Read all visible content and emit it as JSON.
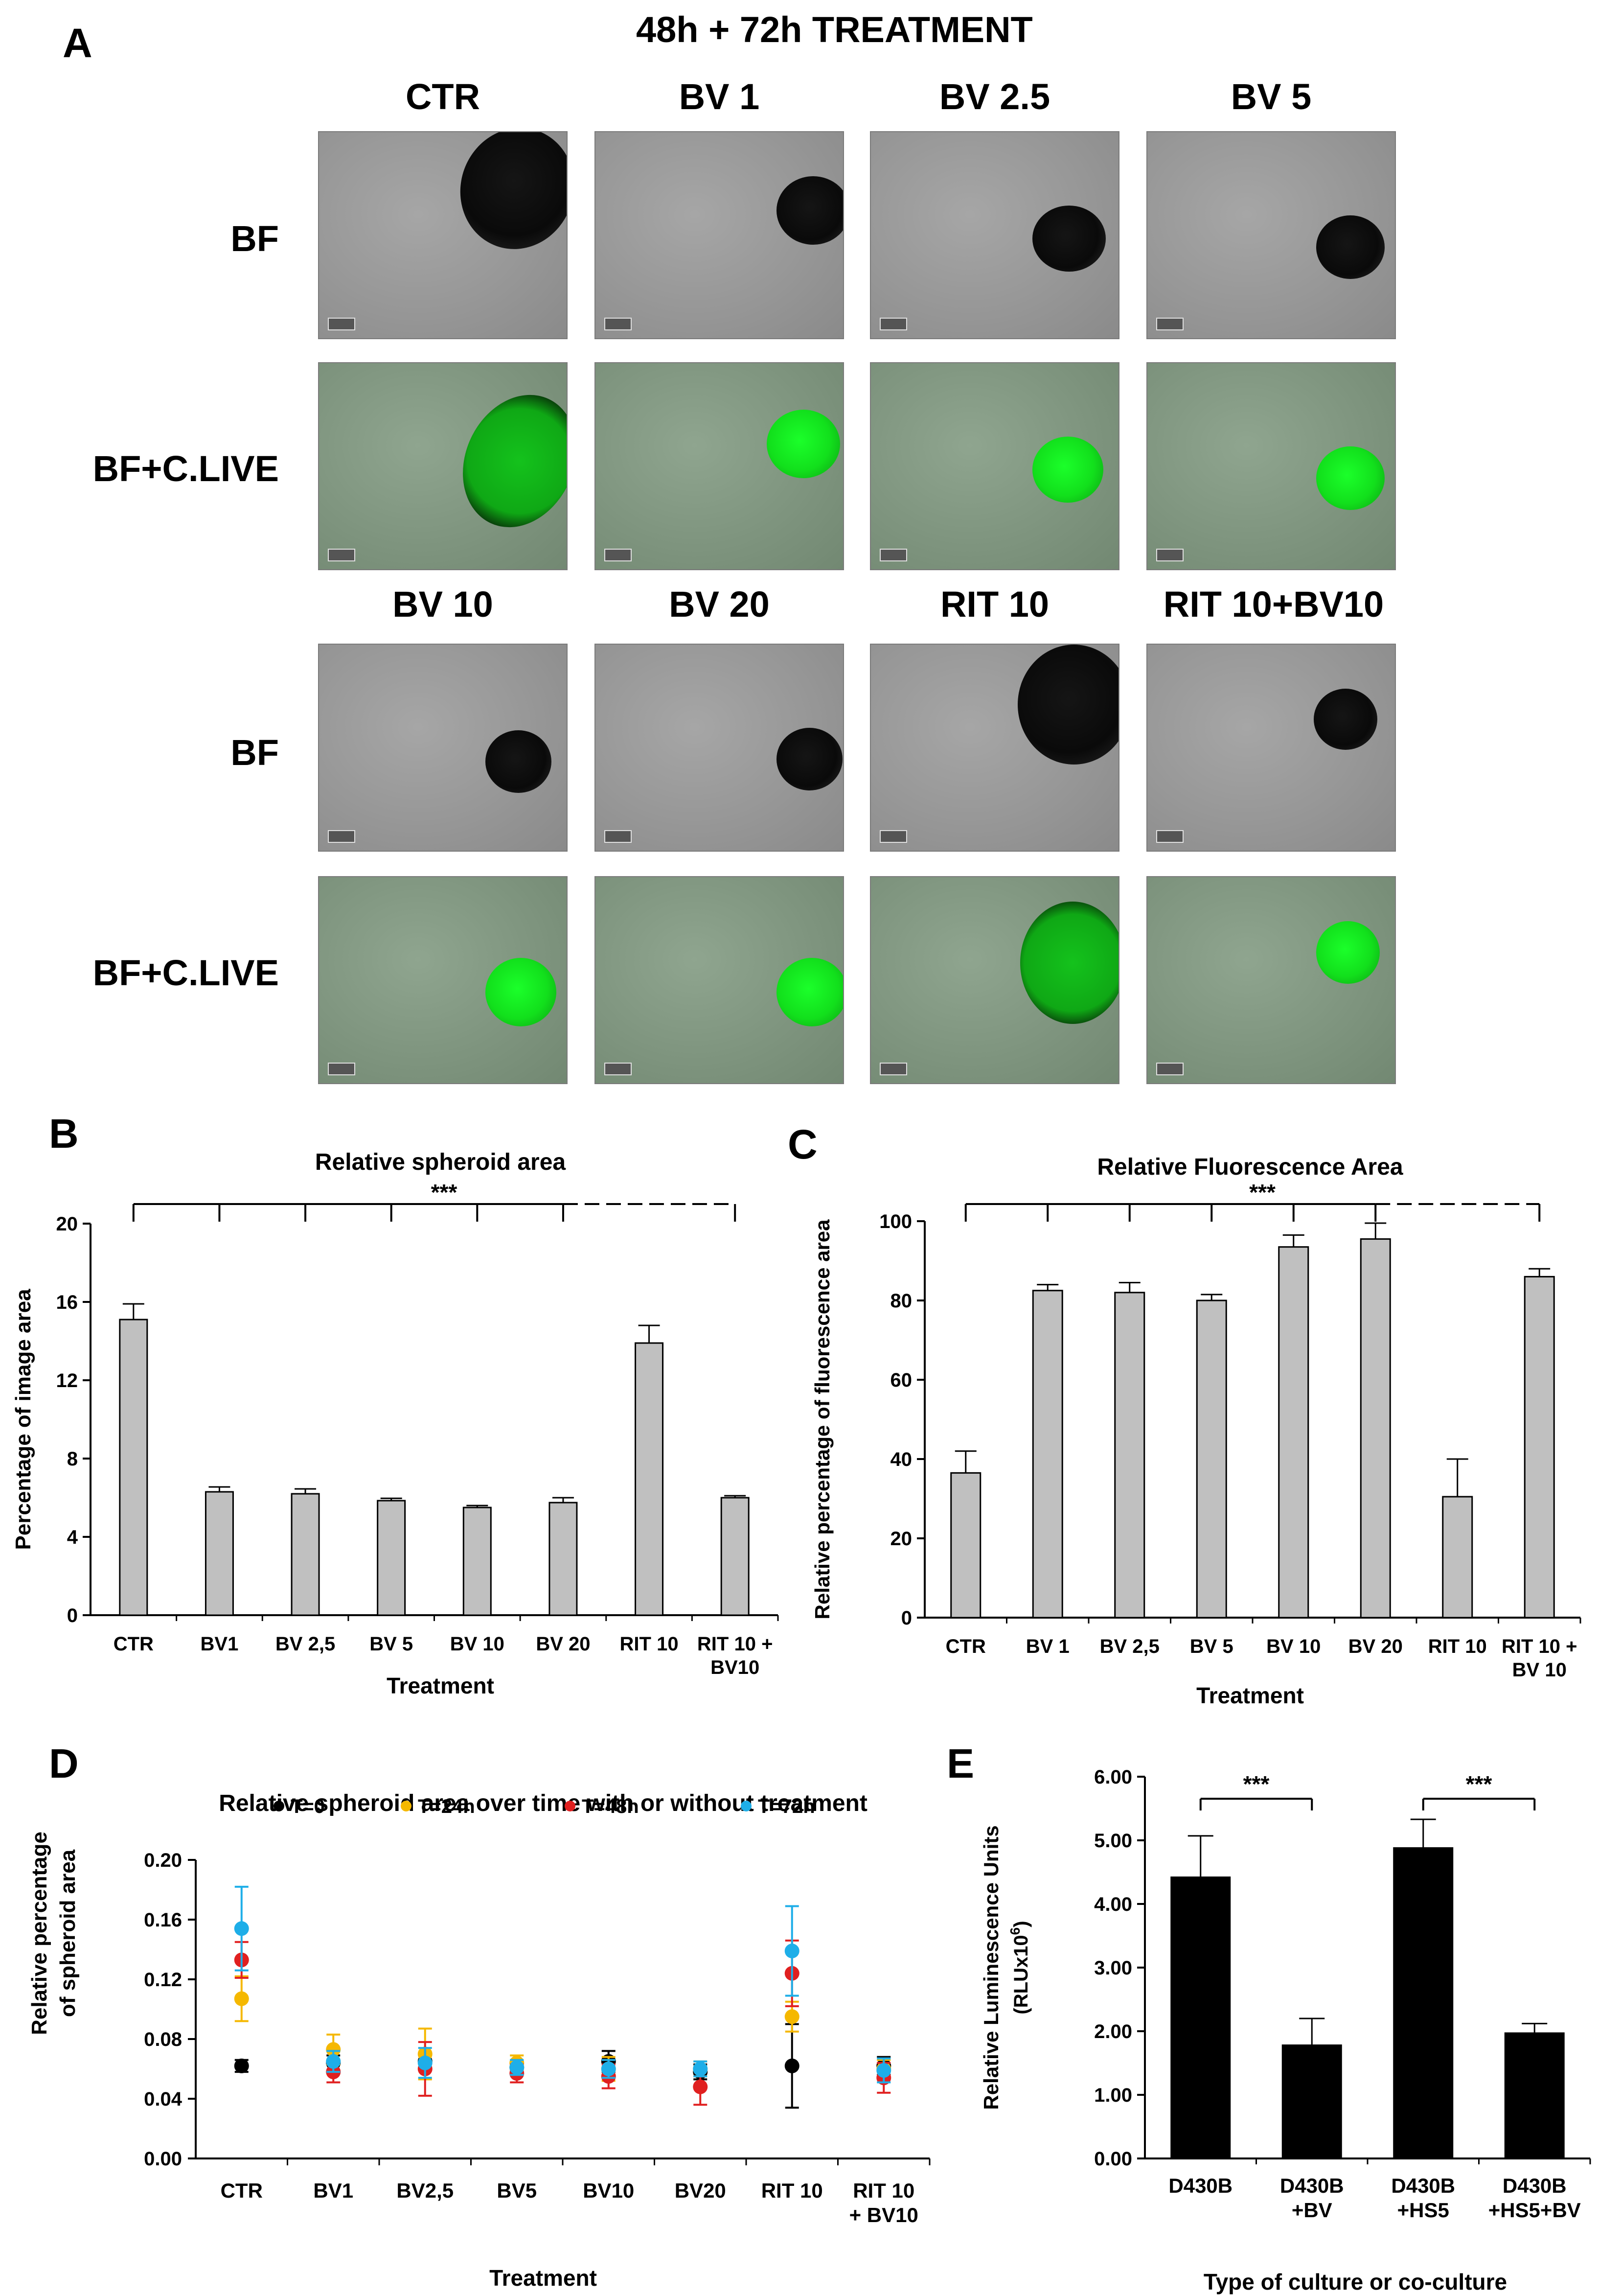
{
  "panelA": {
    "letter": "A",
    "title": "48h + 72h TREATMENT",
    "top_columns": [
      "CTR",
      "BV 1",
      "BV 2.5",
      "BV 5"
    ],
    "bottom_columns": [
      "BV 10",
      "BV 20",
      "RIT 10",
      "RIT 10+BV10"
    ],
    "row_labels": [
      "BF",
      "BF+C.LIVE",
      "BF",
      "BF+C.LIVE"
    ]
  },
  "panelB": {
    "letter": "B",
    "significance": "***",
    "chart_data": {
      "type": "bar",
      "title": "Relative spheroid area",
      "xlabel": "Treatment",
      "ylabel": "Percentage of image area",
      "categories": [
        "CTR",
        "BV1",
        "BV 2,5",
        "BV 5",
        "BV 10",
        "BV 20",
        "RIT 10",
        "RIT 10 +\nBV10"
      ],
      "values": [
        15.1,
        6.3,
        6.2,
        5.85,
        5.5,
        5.75,
        13.9,
        6.0
      ],
      "errors": [
        0.8,
        0.25,
        0.25,
        0.12,
        0.1,
        0.25,
        0.9,
        0.1
      ],
      "ylim": [
        0,
        20
      ],
      "yticks": [
        "0",
        "4",
        "8",
        "12",
        "16",
        "20"
      ],
      "bar_color": "#c0c0c0"
    }
  },
  "panelC": {
    "letter": "C",
    "significance": "***",
    "chart_data": {
      "type": "bar",
      "title": "Relative Fluorescence Area",
      "xlabel": "Treatment",
      "ylabel": "Relative percentage of fluorescence area",
      "categories": [
        "CTR",
        "BV 1",
        "BV 2,5",
        "BV 5",
        "BV 10",
        "BV 20",
        "RIT 10",
        "RIT 10 +\nBV 10"
      ],
      "values": [
        36.5,
        82.5,
        82,
        80,
        93.5,
        95.5,
        30.5,
        86
      ],
      "errors": [
        5.5,
        1.5,
        2.5,
        1.5,
        3.0,
        4.0,
        9.5,
        2.0
      ],
      "ylim": [
        0,
        100
      ],
      "yticks": [
        "0",
        "20",
        "40",
        "60",
        "80",
        "100"
      ],
      "bar_color": "#c0c0c0"
    }
  },
  "panelD": {
    "letter": "D",
    "chart_data": {
      "type": "scatter",
      "title": "Relative spheroid area over time with or without treatment",
      "xlabel": "Treatment",
      "ylabel": "Relative percentage\nof  spheroid area",
      "categories": [
        "CTR",
        "BV1",
        "BV2,5",
        "BV5",
        "BV10",
        "BV20",
        "RIT 10",
        "RIT 10\n+ BV10"
      ],
      "ylim": [
        0,
        0.2
      ],
      "yticks": [
        "0.00",
        "0.04",
        "0.08",
        "0.12",
        "0.16",
        "0.20"
      ],
      "series": [
        {
          "name": "T=0",
          "color": "#000000",
          "values": [
            0.062,
            0.064,
            0.065,
            0.061,
            0.065,
            0.058,
            0.062,
            0.062
          ],
          "errors": [
            0.004,
            0.005,
            0.005,
            0.004,
            0.007,
            0.005,
            0.028,
            0.006
          ]
        },
        {
          "name": "T=24h",
          "color": "#f5b800",
          "values": [
            0.107,
            0.073,
            0.07,
            0.064,
            0.06,
            0.06,
            0.095,
            0.06
          ],
          "errors": [
            0.015,
            0.01,
            0.017,
            0.005,
            0.008,
            0.005,
            0.01,
            0.006
          ]
        },
        {
          "name": "T=48h",
          "color": "#e02020",
          "values": [
            0.133,
            0.058,
            0.06,
            0.057,
            0.055,
            0.048,
            0.124,
            0.054
          ],
          "errors": [
            0.012,
            0.007,
            0.018,
            0.006,
            0.008,
            0.012,
            0.022,
            0.01
          ]
        },
        {
          "name": "T=72h",
          "color": "#1eaee8",
          "values": [
            0.154,
            0.065,
            0.064,
            0.061,
            0.06,
            0.06,
            0.139,
            0.059
          ],
          "errors": [
            0.028,
            0.007,
            0.01,
            0.005,
            0.006,
            0.005,
            0.03,
            0.008
          ]
        }
      ]
    }
  },
  "panelE": {
    "letter": "E",
    "significance": [
      "***",
      "***"
    ],
    "chart_data": {
      "type": "bar",
      "title": "",
      "xlabel": "Type of culture or co-culture",
      "ylabel": "Relative Luminescence Units",
      "ylabel2": "(RLUx10",
      "ylabel2_sup": "6",
      "ylabel2_end": ")",
      "categories": [
        "D430B",
        "D430B\n+BV",
        "D430B\n+HS5",
        "D430B\n+HS5+BV"
      ],
      "values": [
        4.42,
        1.78,
        4.88,
        1.97
      ],
      "errors": [
        0.65,
        0.42,
        0.45,
        0.15
      ],
      "ylim": [
        0,
        6
      ],
      "yticks": [
        "0.00",
        "1.00",
        "2.00",
        "3.00",
        "4.00",
        "5.00",
        "6.00"
      ],
      "bar_color": "#000000"
    }
  }
}
